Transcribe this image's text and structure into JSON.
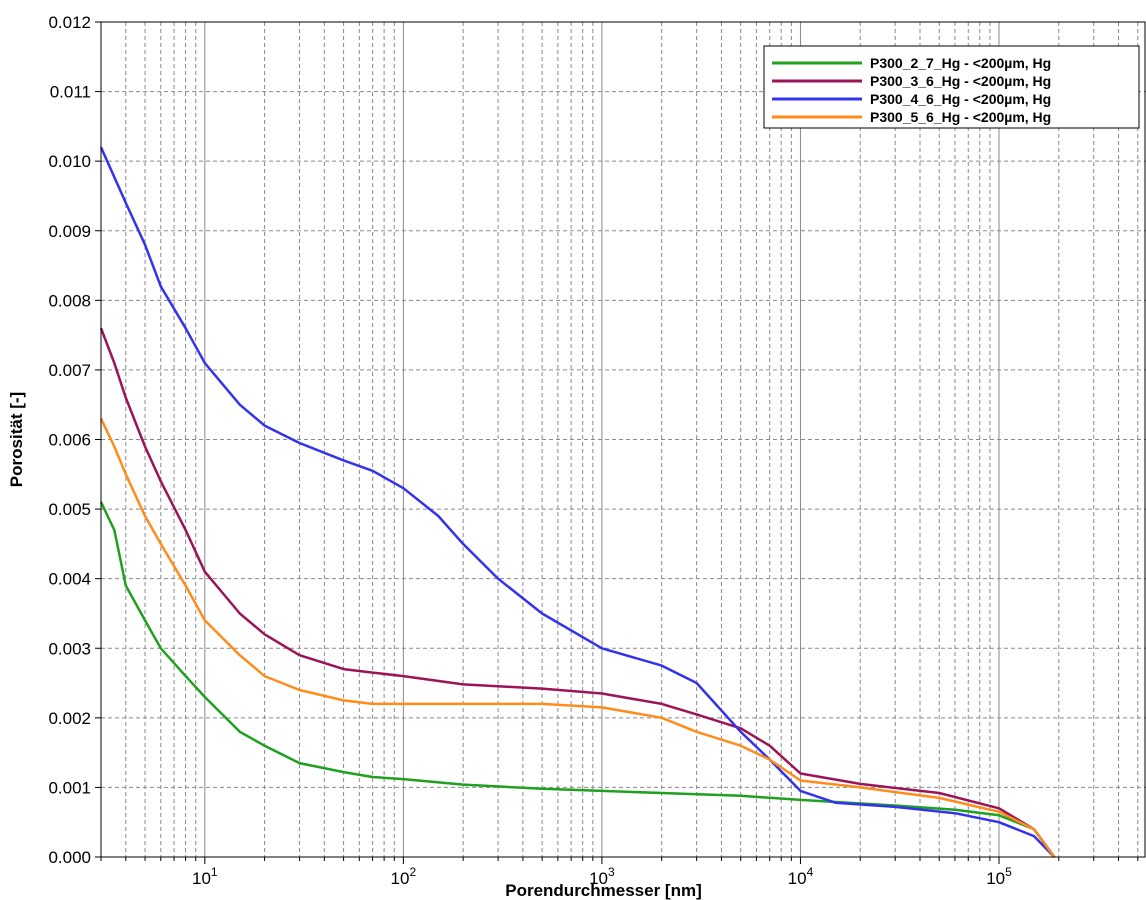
{
  "chart_data": {
    "type": "line",
    "title": "",
    "xlabel": "Porendurchmesser [nm]",
    "ylabel": "Porosität [-]",
    "x_scale": "log",
    "xlim": [
      3,
      550000
    ],
    "ylim": [
      0,
      0.012
    ],
    "grid": true,
    "legend_position": "top-right",
    "x_ticks": [
      {
        "value": 10,
        "base": "10",
        "exp": "1"
      },
      {
        "value": 100,
        "base": "10",
        "exp": "2"
      },
      {
        "value": 1000,
        "base": "10",
        "exp": "3"
      },
      {
        "value": 10000,
        "base": "10",
        "exp": "4"
      },
      {
        "value": 100000,
        "base": "10",
        "exp": "5"
      }
    ],
    "y_ticks": [
      "0.000",
      "0.001",
      "0.002",
      "0.003",
      "0.004",
      "0.005",
      "0.006",
      "0.007",
      "0.008",
      "0.009",
      "0.010",
      "0.011",
      "0.012"
    ],
    "series": [
      {
        "name": "P300_2_7_Hg - <200µm, Hg",
        "color": "#1fa11f",
        "points": [
          [
            3,
            0.0051
          ],
          [
            3.5,
            0.0047
          ],
          [
            4,
            0.0039
          ],
          [
            5,
            0.0034
          ],
          [
            6,
            0.003
          ],
          [
            8,
            0.0026
          ],
          [
            10,
            0.0023
          ],
          [
            15,
            0.0018
          ],
          [
            20,
            0.0016
          ],
          [
            30,
            0.00135
          ],
          [
            50,
            0.00122
          ],
          [
            70,
            0.00115
          ],
          [
            100,
            0.00112
          ],
          [
            200,
            0.00104
          ],
          [
            500,
            0.00098
          ],
          [
            1000,
            0.00095
          ],
          [
            2000,
            0.00092
          ],
          [
            5000,
            0.00088
          ],
          [
            10000,
            0.00082
          ],
          [
            30000,
            0.00074
          ],
          [
            60000,
            0.00068
          ],
          [
            100000,
            0.0006
          ],
          [
            150000,
            0.0004
          ],
          [
            190000,
            0.0
          ]
        ]
      },
      {
        "name": "P300_3_6_Hg - <200µm, Hg",
        "color": "#9b1458",
        "points": [
          [
            3,
            0.0076
          ],
          [
            3.5,
            0.0071
          ],
          [
            4,
            0.0066
          ],
          [
            5,
            0.0059
          ],
          [
            6,
            0.0054
          ],
          [
            8,
            0.0047
          ],
          [
            10,
            0.0041
          ],
          [
            15,
            0.0035
          ],
          [
            20,
            0.0032
          ],
          [
            30,
            0.0029
          ],
          [
            50,
            0.0027
          ],
          [
            70,
            0.00265
          ],
          [
            100,
            0.0026
          ],
          [
            200,
            0.00248
          ],
          [
            500,
            0.00242
          ],
          [
            1000,
            0.00235
          ],
          [
            2000,
            0.0022
          ],
          [
            3000,
            0.00205
          ],
          [
            5000,
            0.00185
          ],
          [
            7000,
            0.0016
          ],
          [
            10000,
            0.0012
          ],
          [
            20000,
            0.00105
          ],
          [
            50000,
            0.00092
          ],
          [
            100000,
            0.0007
          ],
          [
            150000,
            0.0004
          ],
          [
            190000,
            0.0
          ]
        ]
      },
      {
        "name": "P300_4_6_Hg - <200µm, Hg",
        "color": "#3333ee",
        "points": [
          [
            3,
            0.0102
          ],
          [
            4,
            0.0094
          ],
          [
            5,
            0.0088
          ],
          [
            6,
            0.0082
          ],
          [
            8,
            0.0076
          ],
          [
            10,
            0.0071
          ],
          [
            15,
            0.0065
          ],
          [
            20,
            0.0062
          ],
          [
            30,
            0.00595
          ],
          [
            50,
            0.0057
          ],
          [
            70,
            0.00555
          ],
          [
            100,
            0.0053
          ],
          [
            150,
            0.0049
          ],
          [
            200,
            0.0045
          ],
          [
            300,
            0.004
          ],
          [
            500,
            0.0035
          ],
          [
            1000,
            0.003
          ],
          [
            2000,
            0.00275
          ],
          [
            3000,
            0.0025
          ],
          [
            5000,
            0.0018
          ],
          [
            7000,
            0.0014
          ],
          [
            10000,
            0.00095
          ],
          [
            15000,
            0.00078
          ],
          [
            30000,
            0.00072
          ],
          [
            60000,
            0.00063
          ],
          [
            100000,
            0.0005
          ],
          [
            150000,
            0.0003
          ],
          [
            190000,
            0.0
          ]
        ]
      },
      {
        "name": "P300_5_6_Hg - <200µm, Hg",
        "color": "#ff8c1a",
        "points": [
          [
            3,
            0.0063
          ],
          [
            3.5,
            0.0059
          ],
          [
            4,
            0.0055
          ],
          [
            5,
            0.0049
          ],
          [
            6,
            0.0045
          ],
          [
            8,
            0.0039
          ],
          [
            10,
            0.0034
          ],
          [
            15,
            0.0029
          ],
          [
            20,
            0.0026
          ],
          [
            30,
            0.0024
          ],
          [
            50,
            0.00225
          ],
          [
            70,
            0.0022
          ],
          [
            100,
            0.0022
          ],
          [
            200,
            0.0022
          ],
          [
            500,
            0.0022
          ],
          [
            1000,
            0.00215
          ],
          [
            2000,
            0.002
          ],
          [
            3000,
            0.0018
          ],
          [
            5000,
            0.0016
          ],
          [
            7000,
            0.0014
          ],
          [
            10000,
            0.0011
          ],
          [
            20000,
            0.001
          ],
          [
            50000,
            0.00085
          ],
          [
            100000,
            0.00065
          ],
          [
            150000,
            0.0004
          ],
          [
            190000,
            0.0
          ]
        ]
      }
    ]
  }
}
